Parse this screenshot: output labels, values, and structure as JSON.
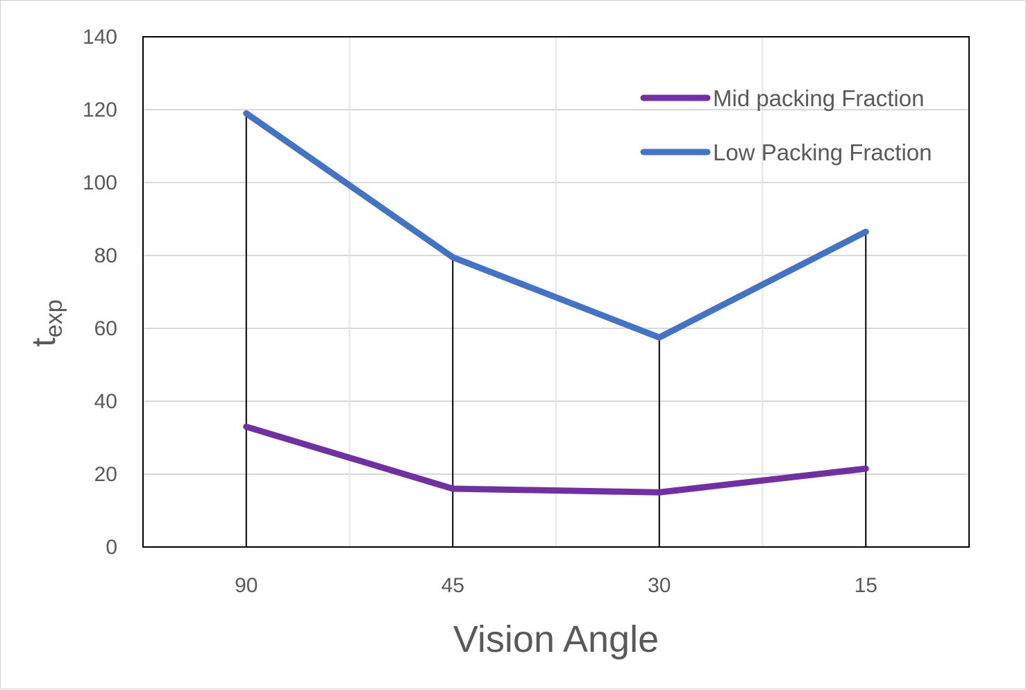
{
  "chart_data": {
    "type": "line",
    "categories": [
      "90",
      "45",
      "30",
      "15"
    ],
    "series": [
      {
        "name": "Mid packing Fraction",
        "values": [
          33,
          16,
          15,
          21.5
        ],
        "color": "#7030a0"
      },
      {
        "name": "Low Packing Fraction",
        "values": [
          119,
          79.5,
          57.5,
          86.5
        ],
        "color": "#4472c4"
      }
    ],
    "xlabel": "Vision Angle",
    "ylabel": {
      "main": "t",
      "subscript": "exp"
    },
    "ylim": [
      0,
      140
    ],
    "yticks": [
      0,
      20,
      40,
      60,
      80,
      100,
      120,
      140
    ],
    "grid": true,
    "drop_lines": true,
    "legend_position": "top-right"
  }
}
